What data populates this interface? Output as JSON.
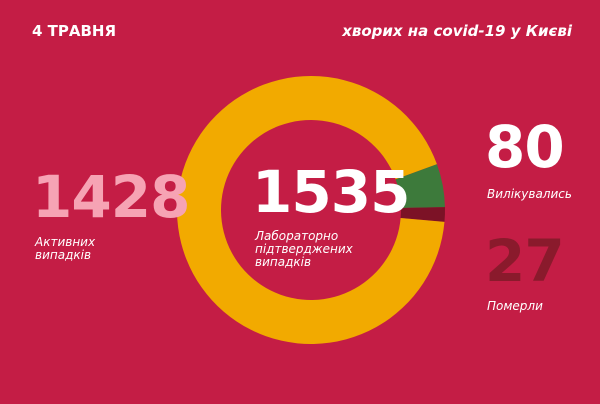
{
  "chart_data": {
    "type": "donut",
    "date": "4 ТРАВНЯ",
    "title": "хворих на covid-19 у Києві",
    "total": 1535,
    "total_label": "Лабораторно\nпідтверджених\nвипадків",
    "categories": [
      "Активних\nвипадків",
      "Вилікувались",
      "Померли"
    ],
    "values": [
      1428,
      80,
      27
    ],
    "colors": [
      "#f2aa00",
      "#3d7a3b",
      "#7c1226"
    ],
    "value_colors": [
      "#f6a3b4",
      "#ffffff",
      "#8a1a2c"
    ]
  }
}
